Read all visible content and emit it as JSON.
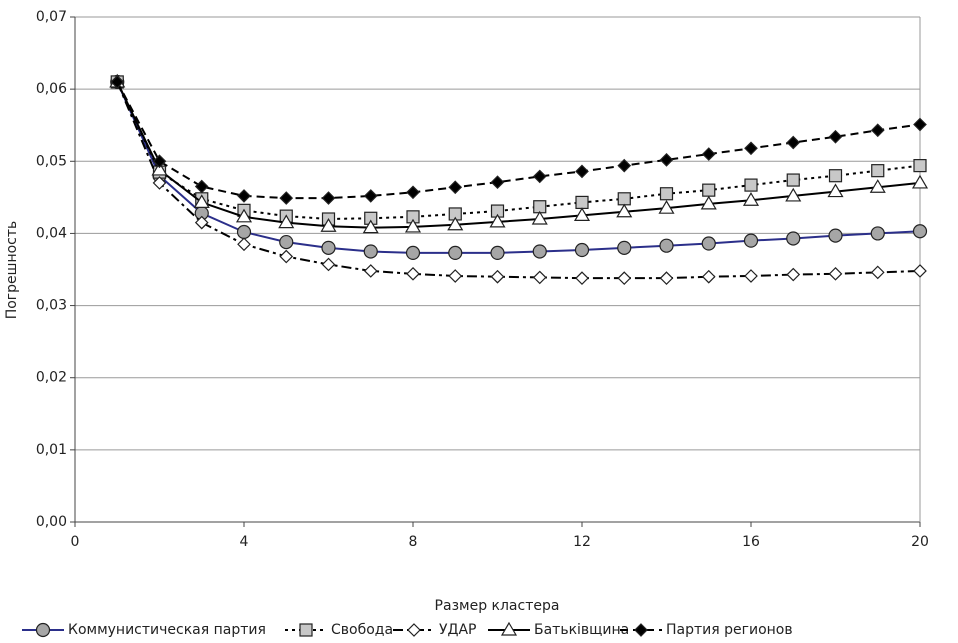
{
  "chart_data": {
    "type": "line",
    "x_label": "Размер кластера",
    "y_label": "Погрешность",
    "x": [
      1,
      2,
      3,
      4,
      5,
      6,
      7,
      8,
      9,
      10,
      11,
      12,
      13,
      14,
      15,
      16,
      17,
      18,
      19,
      20
    ],
    "xlim": [
      0,
      20
    ],
    "xticks": [
      0,
      4,
      8,
      12,
      16,
      20
    ],
    "ylim": [
      0,
      0.07
    ],
    "yticks": [
      {
        "value": 0,
        "label": "0,00"
      },
      {
        "value": 0.01,
        "label": "0,01"
      },
      {
        "value": 0.02,
        "label": "0,02"
      },
      {
        "value": 0.03,
        "label": "0,03"
      },
      {
        "value": 0.04,
        "label": "0,04"
      },
      {
        "value": 0.05,
        "label": "0,05"
      },
      {
        "value": 0.06,
        "label": "0,06"
      },
      {
        "value": 0.07,
        "label": "0,07"
      }
    ],
    "grid": true,
    "legend": "bottom",
    "series": [
      {
        "name": "Коммунистическая партия",
        "color": "#2b2f8a",
        "dash": "solid",
        "marker": "circle",
        "marker_fill": "#a6a6a6",
        "values": [
          0.061,
          0.048,
          0.0428,
          0.0402,
          0.0388,
          0.038,
          0.0375,
          0.0373,
          0.0373,
          0.0373,
          0.0375,
          0.0377,
          0.038,
          0.0383,
          0.0386,
          0.039,
          0.0393,
          0.0397,
          0.04,
          0.0403
        ]
      },
      {
        "name": "Свобода",
        "color": "#000000",
        "dash": "dot",
        "marker": "square",
        "marker_fill": "#c8c8c8",
        "values": [
          0.061,
          0.0485,
          0.0448,
          0.0432,
          0.0424,
          0.042,
          0.0421,
          0.0423,
          0.0427,
          0.0431,
          0.0437,
          0.0443,
          0.0448,
          0.0455,
          0.046,
          0.0467,
          0.0474,
          0.048,
          0.0487,
          0.0494
        ]
      },
      {
        "name": "УДАР",
        "color": "#000000",
        "dash": "dashdot",
        "marker": "diamond",
        "marker_fill": "#ffffff",
        "values": [
          0.061,
          0.047,
          0.0415,
          0.0385,
          0.0368,
          0.0357,
          0.0348,
          0.0344,
          0.0341,
          0.034,
          0.0339,
          0.0338,
          0.0338,
          0.0338,
          0.034,
          0.0341,
          0.0343,
          0.0344,
          0.0346,
          0.0348
        ]
      },
      {
        "name": "Батьківщина",
        "color": "#000000",
        "dash": "solid",
        "marker": "triangle",
        "marker_fill": "#ffffff",
        "values": [
          0.061,
          0.0488,
          0.0443,
          0.0423,
          0.0415,
          0.041,
          0.0408,
          0.0409,
          0.0412,
          0.0416,
          0.042,
          0.0425,
          0.043,
          0.0435,
          0.0441,
          0.0446,
          0.0452,
          0.0458,
          0.0464,
          0.047
        ]
      },
      {
        "name": "Партия регионов",
        "color": "#000000",
        "dash": "dash",
        "marker": "diamond",
        "marker_fill": "#000000",
        "values": [
          0.061,
          0.05,
          0.0465,
          0.0452,
          0.0449,
          0.0449,
          0.0452,
          0.0457,
          0.0464,
          0.0471,
          0.0479,
          0.0486,
          0.0494,
          0.0502,
          0.051,
          0.0518,
          0.0526,
          0.0534,
          0.0543,
          0.0551
        ]
      }
    ]
  }
}
